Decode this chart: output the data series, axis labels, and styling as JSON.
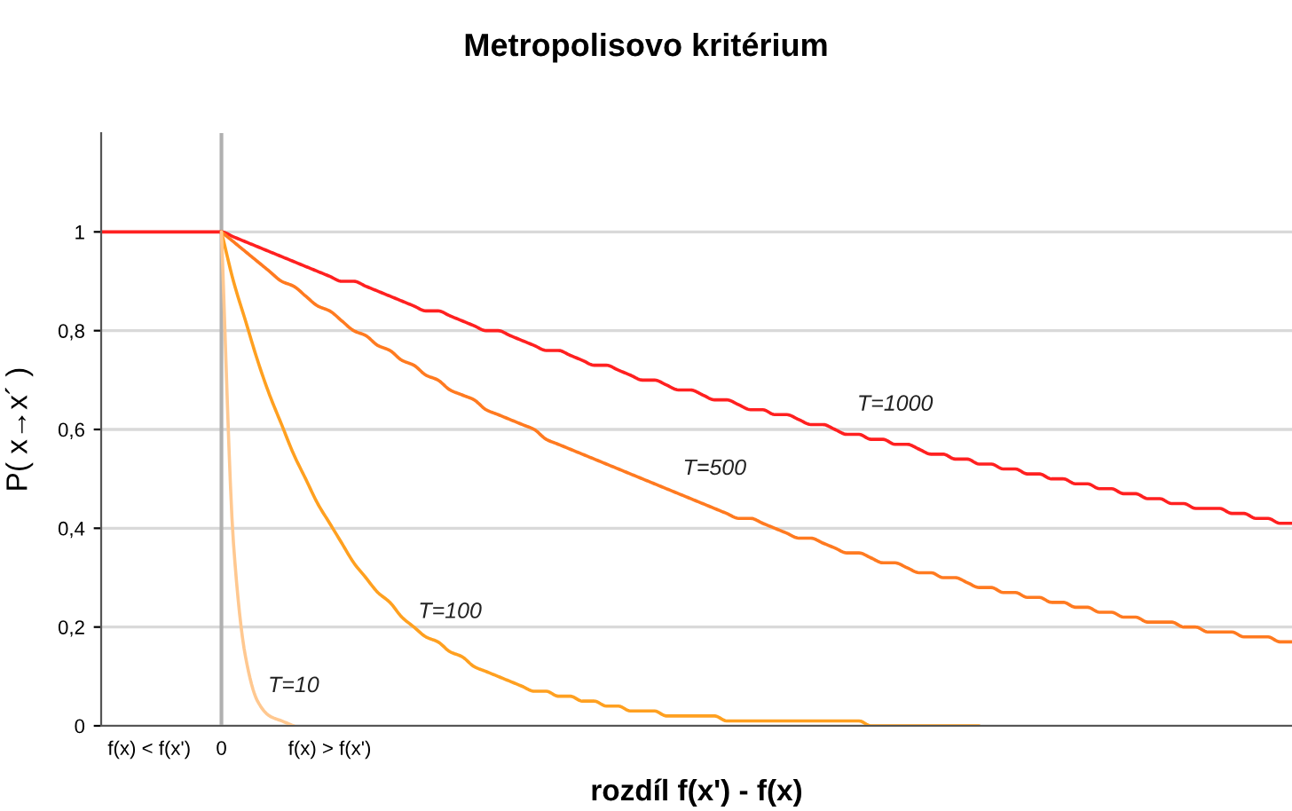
{
  "chart_data": {
    "type": "line",
    "title": "Metropolisovo kritérium",
    "xlabel": "rozdíl f(x') - f(x)",
    "ylabel": "P( x→x´ )",
    "categories": [
      null,
      null,
      null,
      null,
      "f(x) < f(x')",
      null,
      null,
      null,
      null,
      null,
      "0",
      null,
      null,
      null,
      null,
      null,
      null,
      null,
      null,
      "f(x) > f(x')",
      null,
      null,
      null,
      null,
      null,
      null,
      null,
      null,
      null,
      null,
      null,
      null,
      null,
      null,
      null,
      null,
      null,
      null,
      null,
      null,
      null,
      null,
      null,
      null,
      null,
      null,
      null,
      null,
      null,
      null,
      null,
      null,
      null,
      null,
      null,
      null,
      null,
      null,
      null,
      null,
      null,
      null,
      null,
      null,
      null,
      null,
      null,
      null,
      null,
      null,
      null,
      null,
      null,
      null,
      null,
      null,
      null,
      null,
      null,
      null,
      null,
      null,
      null,
      null,
      null,
      null,
      null,
      null,
      null,
      null,
      null,
      null,
      null,
      null,
      null,
      null,
      null,
      null,
      null,
      null
    ],
    "series": [
      {
        "name": "T=1000",
        "color": "#ff2020",
        "values": [
          1,
          1,
          1,
          1,
          1,
          1,
          1,
          1,
          1,
          1,
          1,
          0.99,
          0.98,
          0.97,
          0.96,
          0.95,
          0.94,
          0.93,
          0.92,
          0.91,
          0.9,
          0.9,
          0.89,
          0.88,
          0.87,
          0.86,
          0.85,
          0.84,
          0.84,
          0.83,
          0.82,
          0.81,
          0.8,
          0.8,
          0.79,
          0.78,
          0.77,
          0.76,
          0.76,
          0.75,
          0.74,
          0.73,
          0.73,
          0.72,
          0.71,
          0.7,
          0.7,
          0.69,
          0.68,
          0.68,
          0.67,
          0.66,
          0.66,
          0.65,
          0.64,
          0.64,
          0.63,
          0.63,
          0.62,
          0.61,
          0.61,
          0.6,
          0.59,
          0.59,
          0.58,
          0.58,
          0.57,
          0.57,
          0.56,
          0.55,
          0.55,
          0.54,
          0.54,
          0.53,
          0.53,
          0.52,
          0.52,
          0.51,
          0.51,
          0.5,
          0.5,
          0.49,
          0.49,
          0.48,
          0.48,
          0.47,
          0.47,
          0.46,
          0.46,
          0.45,
          0.45,
          0.44,
          0.44,
          0.44,
          0.43,
          0.43,
          0.42,
          0.42,
          0.41,
          0.41
        ]
      },
      {
        "name": "T=500",
        "color": "#ff7a20",
        "values": [
          null,
          null,
          null,
          null,
          null,
          null,
          null,
          null,
          null,
          null,
          1,
          0.98,
          0.96,
          0.94,
          0.92,
          0.9,
          0.89,
          0.87,
          0.85,
          0.84,
          0.82,
          0.8,
          0.79,
          0.77,
          0.76,
          0.74,
          0.73,
          0.71,
          0.7,
          0.68,
          0.67,
          0.66,
          0.64,
          0.63,
          0.62,
          0.61,
          0.6,
          0.58,
          0.57,
          0.56,
          0.55,
          0.54,
          0.53,
          0.52,
          0.51,
          0.5,
          0.49,
          0.48,
          0.47,
          0.46,
          0.45,
          0.44,
          0.43,
          0.42,
          0.42,
          0.41,
          0.4,
          0.39,
          0.38,
          0.38,
          0.37,
          0.36,
          0.35,
          0.35,
          0.34,
          0.33,
          0.33,
          0.32,
          0.31,
          0.31,
          0.3,
          0.3,
          0.29,
          0.28,
          0.28,
          0.27,
          0.27,
          0.26,
          0.26,
          0.25,
          0.25,
          0.24,
          0.24,
          0.23,
          0.23,
          0.22,
          0.22,
          0.21,
          0.21,
          0.21,
          0.2,
          0.2,
          0.19,
          0.19,
          0.19,
          0.18,
          0.18,
          0.18,
          0.17,
          0.17
        ]
      },
      {
        "name": "T=100",
        "color": "#ffa020",
        "values": [
          null,
          null,
          null,
          null,
          null,
          null,
          null,
          null,
          null,
          null,
          1,
          0.9,
          0.82,
          0.74,
          0.67,
          0.61,
          0.55,
          0.5,
          0.45,
          0.41,
          0.37,
          0.33,
          0.3,
          0.27,
          0.25,
          0.22,
          0.2,
          0.18,
          0.17,
          0.15,
          0.14,
          0.12,
          0.11,
          0.1,
          0.09,
          0.08,
          0.07,
          0.07,
          0.06,
          0.06,
          0.05,
          0.05,
          0.04,
          0.04,
          0.03,
          0.03,
          0.03,
          0.02,
          0.02,
          0.02,
          0.02,
          0.02,
          0.01,
          0.01,
          0.01,
          0.01,
          0.01,
          0.01,
          0.01,
          0.01,
          0.01,
          0.01,
          0.01,
          0.01,
          0,
          0,
          0,
          0,
          0,
          0,
          0,
          0,
          0,
          0,
          null,
          null,
          null,
          null,
          null,
          null,
          null,
          null,
          null,
          null,
          null,
          null,
          null,
          null,
          null,
          null,
          null,
          null,
          null,
          null,
          null,
          null,
          null,
          null,
          null,
          null
        ]
      },
      {
        "name": "T=10",
        "color": "#ffc890",
        "values": [
          null,
          null,
          null,
          null,
          null,
          null,
          null,
          null,
          null,
          null,
          1,
          0.37,
          0.14,
          0.05,
          0.02,
          0.01,
          0,
          null,
          null,
          null,
          null,
          null,
          null,
          null,
          null,
          null,
          null,
          null,
          null,
          null,
          null,
          null,
          null,
          null,
          null,
          null,
          null,
          null,
          null,
          null,
          null,
          null,
          null,
          null,
          null,
          null,
          null,
          null,
          null,
          null,
          null,
          null,
          null,
          null,
          null,
          null,
          null,
          null,
          null,
          null,
          null,
          null,
          null,
          null,
          null,
          null,
          null,
          null,
          null,
          null,
          null,
          null,
          null,
          null,
          null,
          null,
          null,
          null,
          null,
          null,
          null,
          null,
          null,
          null,
          null,
          null,
          null,
          null,
          null,
          null,
          null,
          null,
          null,
          null,
          null,
          null,
          null,
          null,
          null,
          null
        ]
      }
    ],
    "ref_lines": [
      {
        "axis": "x",
        "value": "0",
        "color": "#b0b0b0"
      }
    ],
    "ylim": [
      0,
      1.2
    ],
    "yticks": [
      0,
      {
        "value": 0.2,
        "label": "0,2"
      },
      {
        "value": 0.4,
        "label": "0,4"
      },
      {
        "value": 0.6,
        "label": "0,6"
      },
      {
        "value": 0.8,
        "label": "0,8"
      },
      1
    ],
    "grid": "y",
    "marker": "none",
    "line_style": "solid",
    "legend": false
  }
}
